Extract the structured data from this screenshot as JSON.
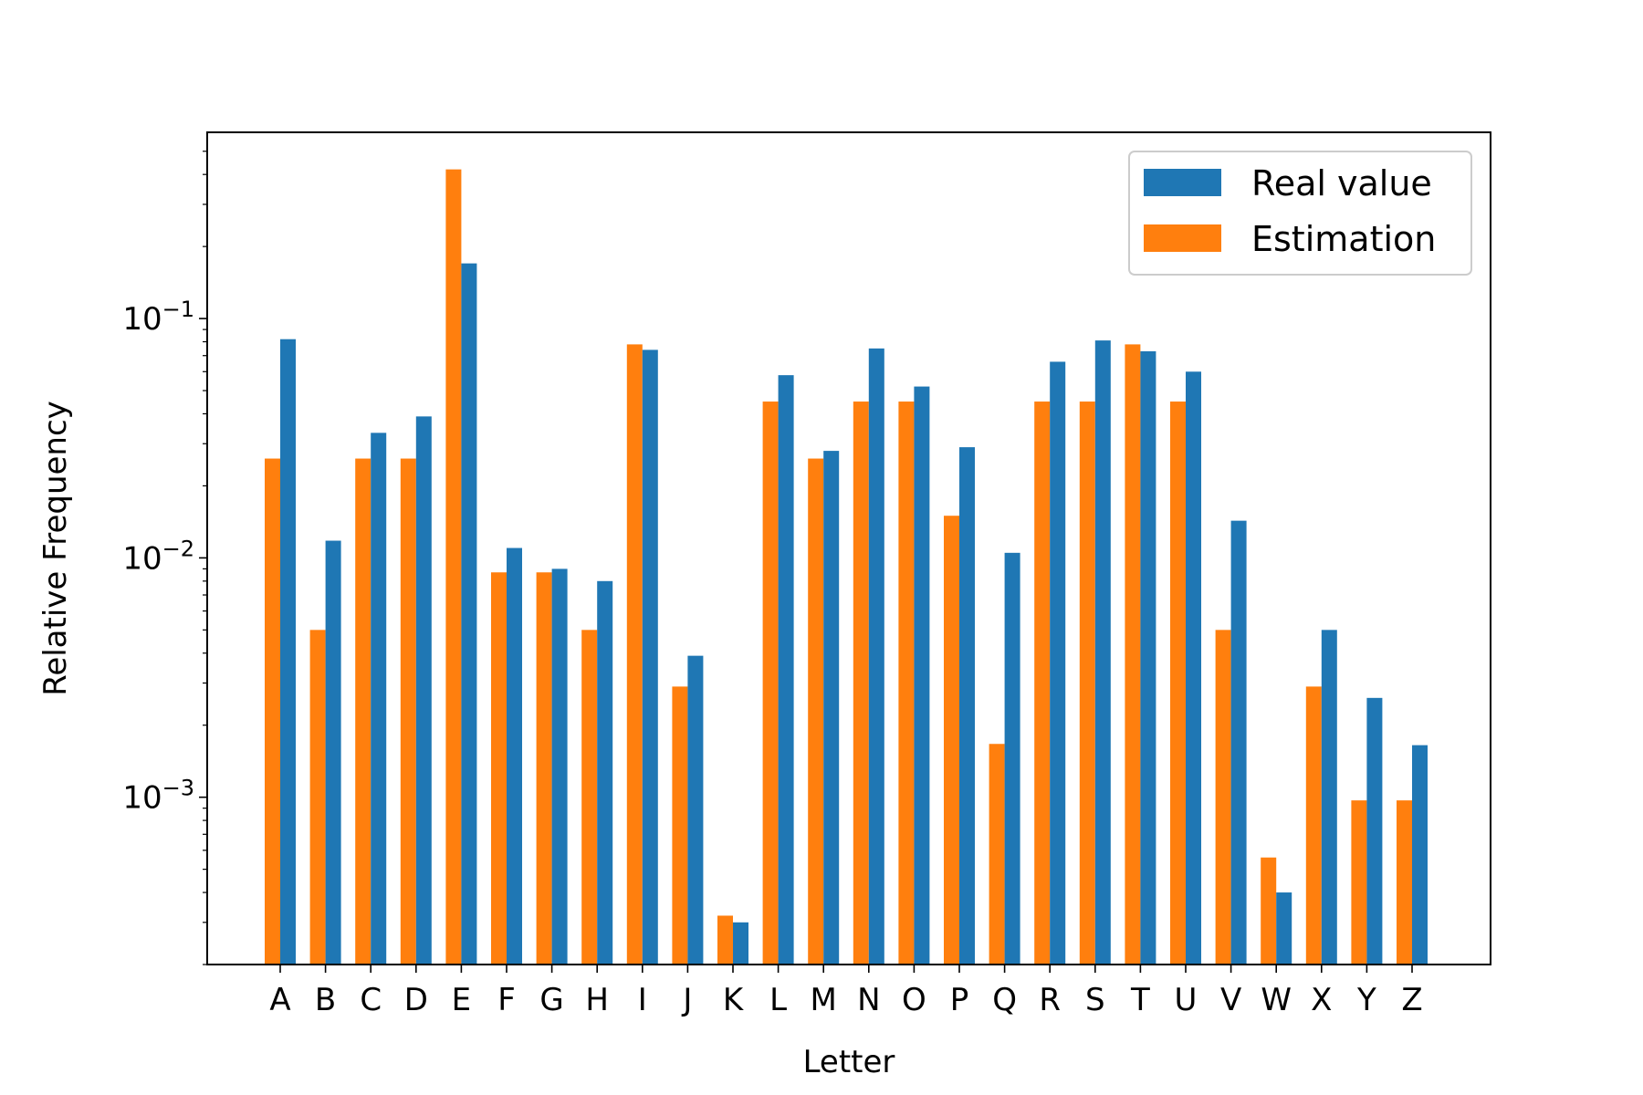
{
  "chart_data": {
    "type": "bar",
    "scale": "log",
    "title": "",
    "xlabel": "Letter",
    "ylabel": "Relative Frequency",
    "ylim": [
      0.0002,
      0.6
    ],
    "categories": [
      "A",
      "B",
      "C",
      "D",
      "E",
      "F",
      "G",
      "H",
      "I",
      "J",
      "K",
      "L",
      "M",
      "N",
      "O",
      "P",
      "Q",
      "R",
      "S",
      "T",
      "U",
      "V",
      "W",
      "X",
      "Y",
      "Z"
    ],
    "yticks": [
      {
        "value": 0.1,
        "base": "10",
        "exp": "−1"
      },
      {
        "value": 0.01,
        "base": "10",
        "exp": "−2"
      },
      {
        "value": 0.001,
        "base": "10",
        "exp": "−3"
      }
    ],
    "legend_position": "top-right",
    "series": [
      {
        "name": "Estimation",
        "color": "#ff7f0e",
        "values": [
          0.026,
          0.005,
          0.026,
          0.026,
          0.42,
          0.0087,
          0.0087,
          0.005,
          0.078,
          0.0029,
          0.00032,
          0.045,
          0.026,
          0.045,
          0.045,
          0.015,
          0.00167,
          0.045,
          0.045,
          0.078,
          0.045,
          0.005,
          0.00056,
          0.0029,
          0.00097,
          0.00097
        ]
      },
      {
        "name": "Real value",
        "color": "#1f77b4",
        "values": [
          0.082,
          0.0118,
          0.0333,
          0.039,
          0.17,
          0.011,
          0.009,
          0.008,
          0.074,
          0.0039,
          0.0003,
          0.058,
          0.028,
          0.075,
          0.052,
          0.029,
          0.0105,
          0.066,
          0.081,
          0.073,
          0.06,
          0.0143,
          0.0004,
          0.005,
          0.0026,
          0.00165
        ]
      }
    ],
    "legend_entries": [
      {
        "name": "Real value",
        "color": "#1f77b4"
      },
      {
        "name": "Estimation",
        "color": "#ff7f0e"
      }
    ]
  }
}
